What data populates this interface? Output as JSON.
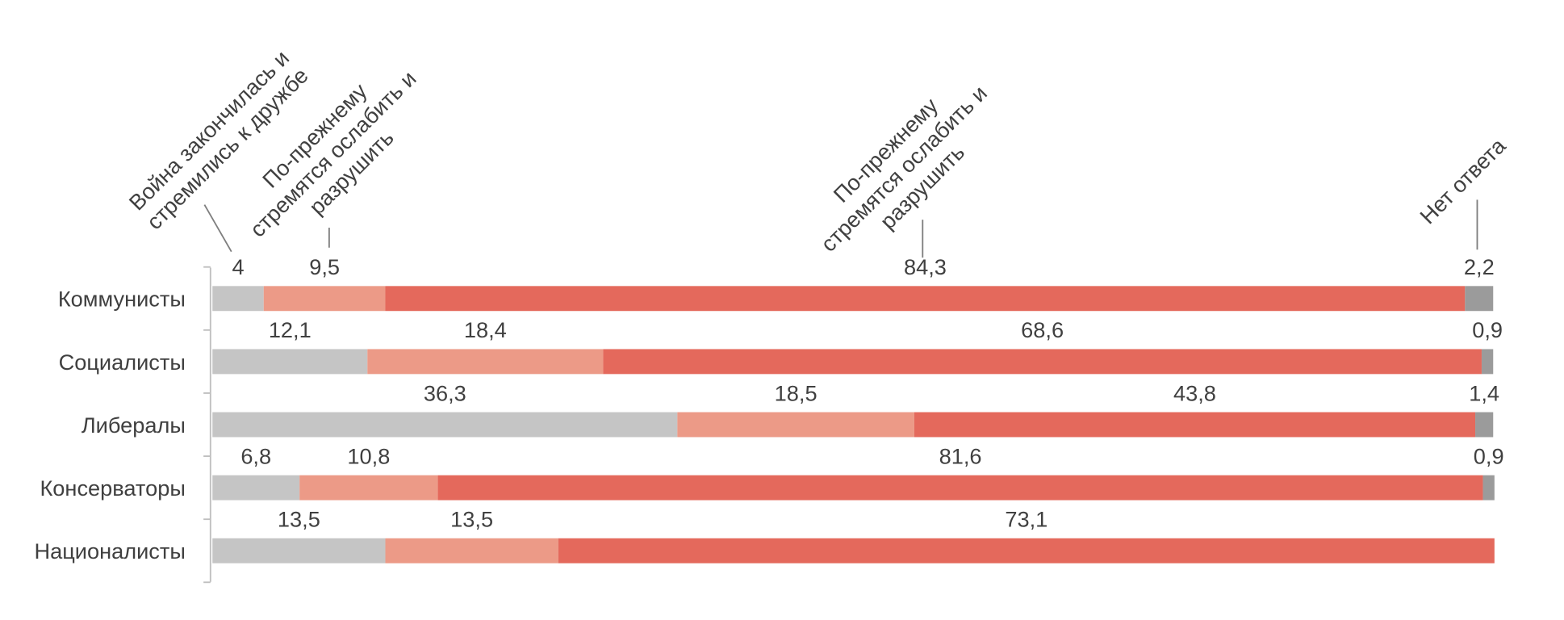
{
  "chart_data": {
    "type": "stacked_bar_horizontal",
    "categories": [
      "Коммунисты",
      "Социалисты",
      "Либералы",
      "Консерваторы",
      "Националисты"
    ],
    "series": [
      {
        "name": "Война закончилась и стремились к дружбе",
        "color": "#c5c5c5",
        "values": [
          4,
          12.1,
          36.3,
          6.8,
          13.5
        ],
        "value_labels": [
          "4",
          "12,1",
          "36,3",
          "6,8",
          "13,5"
        ]
      },
      {
        "name": "По-прежнему стремятся ослабить и разрушить",
        "color": "#ec9a87",
        "values": [
          9.5,
          18.4,
          18.5,
          10.8,
          13.5
        ],
        "value_labels": [
          "9,5",
          "18,4",
          "18,5",
          "10,8",
          "13,5"
        ]
      },
      {
        "name": "По-прежнему стремятся ослабить и разрушить",
        "color": "#e4695c",
        "values": [
          84.3,
          68.6,
          43.8,
          81.6,
          73.1
        ],
        "value_labels": [
          "84,3",
          "68,6",
          "43,8",
          "81,6",
          "73,1"
        ]
      },
      {
        "name": "Нет ответа",
        "color": "#9b9b9b",
        "values": [
          2.2,
          0.9,
          1.4,
          0.9,
          null
        ],
        "value_labels": [
          "2,2",
          "0,9",
          "1,4",
          "0,9",
          null
        ]
      }
    ],
    "xlim": [
      0,
      100
    ]
  }
}
